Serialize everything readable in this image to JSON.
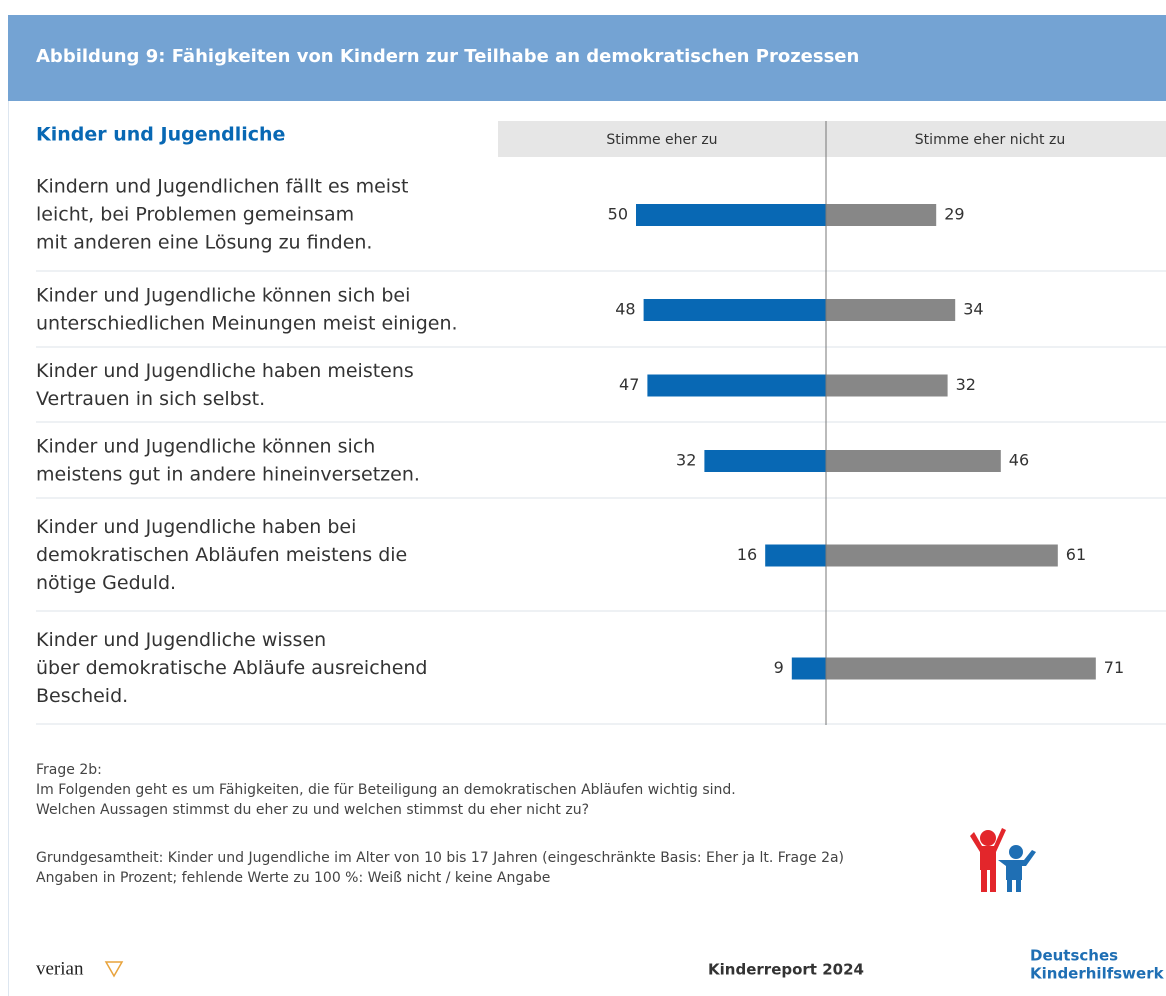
{
  "figure_title": "Abbildung 9: Fähigkeiten von Kindern zur Teilhabe an demokratischen Prozessen",
  "chart_data": {
    "type": "diverging_bar",
    "title": "Kinder und Jugendliche",
    "categories": [
      [
        "Kindern und Jugendlichen fällt es meist",
        "leicht, bei Problemen gemeinsam",
        "mit anderen eine Lösung zu finden."
      ],
      [
        "Kinder und Jugendliche können sich bei",
        "unterschiedlichen Meinungen meist einigen."
      ],
      [
        "Kinder und Jugendliche haben meistens",
        "Vertrauen in sich selbst."
      ],
      [
        "Kinder und Jugendliche können sich",
        "meistens gut in andere hineinversetzen."
      ],
      [
        "Kinder und Jugendliche haben bei",
        "demokratischen Abläufen meistens die",
        "nötige Geduld."
      ],
      [
        "Kinder und Jugendliche wissen",
        "über demokratische Abläufe ausreichend",
        "Bescheid."
      ]
    ],
    "series": [
      {
        "name": "Stimme eher zu",
        "color": "#0868b4",
        "values": [
          50,
          48,
          47,
          32,
          16,
          9
        ]
      },
      {
        "name": "Stimme eher nicht zu",
        "color": "#878787",
        "values": [
          29,
          34,
          32,
          46,
          61,
          71
        ]
      }
    ]
  },
  "notes": [
    "Frage 2b:",
    "Im Folgenden geht es um Fähigkeiten, die für Beteiligung an demokratischen Abläufen wichtig sind.",
    "Welchen Aussagen stimmst du eher zu und welchen stimmst du eher nicht zu?",
    "Grundgesamtheit: Kinder und Jugendliche im Alter von 10 bis 17 Jahren (eingeschränkte Basis: Eher ja lt. Frage 2a)",
    "Angaben in Prozent; fehlende Werte zu 100 %: Weiß nicht / keine Angabe"
  ],
  "brand": "verian",
  "report": "Kinderreport 2024",
  "org": [
    "Deutsches",
    "Kinderhilfswerk"
  ]
}
